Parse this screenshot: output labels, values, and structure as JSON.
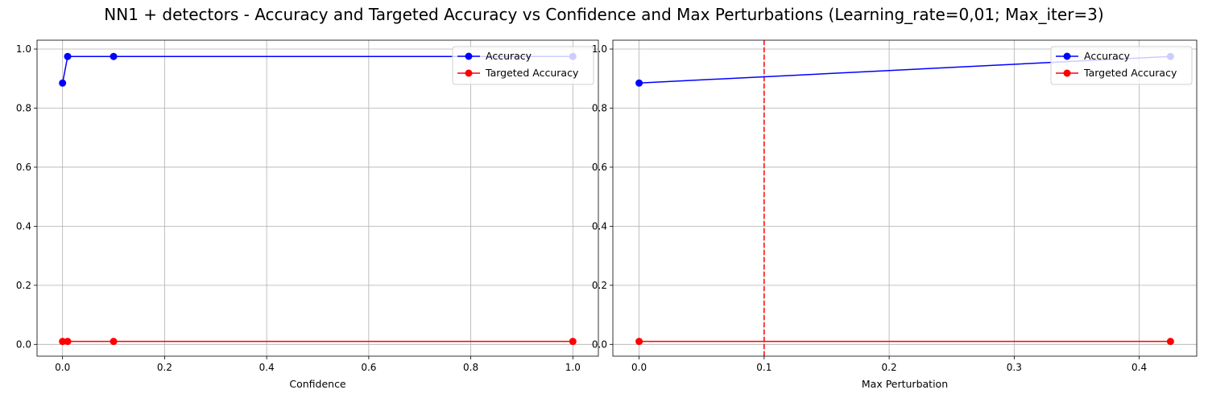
{
  "figure": {
    "title": "NN1 + detectors - Accuracy and Targeted Accuracy vs Confidence and Max Perturbations (Learning_rate=0,01; Max_iter=3)"
  },
  "colors": {
    "accuracy": "#0000ff",
    "targeted": "#ff0000",
    "vline": "#ff0000",
    "grid": "#b0b0b0"
  },
  "chart_data": [
    {
      "type": "line",
      "xlabel": "Confidence",
      "ylabel": "",
      "xlim": [
        -0.05,
        1.05
      ],
      "ylim": [
        -0.04,
        1.03
      ],
      "xticks": [
        0.0,
        0.2,
        0.4,
        0.6,
        0.8,
        1.0
      ],
      "xtick_labels": [
        "0.0",
        "0.2",
        "0.4",
        "0.6",
        "0.8",
        "1.0"
      ],
      "yticks": [
        0.0,
        0.2,
        0.4,
        0.6,
        0.8,
        1.0
      ],
      "ytick_labels": [
        "0.0",
        "0.2",
        "0.4",
        "0.6",
        "0.8",
        "1.0"
      ],
      "grid": true,
      "legend": "top-right",
      "series": [
        {
          "name": "Accuracy",
          "color": "#0000ff",
          "x": [
            0.0,
            0.01,
            0.1,
            1.0
          ],
          "y": [
            0.885,
            0.975,
            0.975,
            0.975
          ]
        },
        {
          "name": "Targeted Accuracy",
          "color": "#ff0000",
          "x": [
            0.0,
            0.01,
            0.1,
            1.0
          ],
          "y": [
            0.01,
            0.01,
            0.01,
            0.01
          ]
        }
      ]
    },
    {
      "type": "line",
      "xlabel": "Max Perturbation",
      "ylabel": "",
      "xlim": [
        -0.021,
        0.446
      ],
      "ylim": [
        -0.04,
        1.03
      ],
      "xticks": [
        0.0,
        0.1,
        0.2,
        0.3,
        0.4
      ],
      "xtick_labels": [
        "0.0",
        "0.1",
        "0.2",
        "0.3",
        "0.4"
      ],
      "yticks": [
        0.0,
        0.2,
        0.4,
        0.6,
        0.8,
        1.0
      ],
      "ytick_labels": [
        "0.0",
        "0.2",
        "0.4",
        "0.6",
        "0.8",
        "1.0"
      ],
      "grid": true,
      "legend": "top-right",
      "vline": {
        "x": 0.1,
        "color": "#ff0000",
        "style": "dashed"
      },
      "series": [
        {
          "name": "Accuracy",
          "color": "#0000ff",
          "x": [
            0.0,
            0.425
          ],
          "y": [
            0.885,
            0.975
          ]
        },
        {
          "name": "Targeted Accuracy",
          "color": "#ff0000",
          "x": [
            0.0,
            0.425
          ],
          "y": [
            0.01,
            0.01
          ]
        }
      ]
    }
  ]
}
